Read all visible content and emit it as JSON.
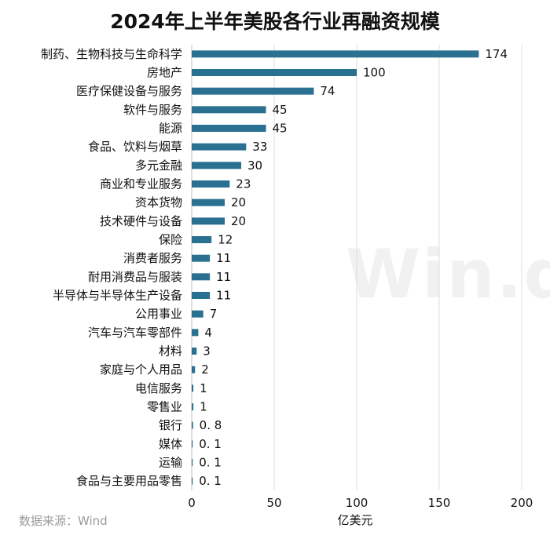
{
  "chart_data": {
    "type": "bar",
    "orientation": "horizontal",
    "title": "2024年上半年美股各行业再融资规模",
    "xlabel": "亿美元",
    "ylabel": "",
    "xlim": [
      0,
      200
    ],
    "x_ticks": [
      0,
      50,
      100,
      150,
      200
    ],
    "grid": true,
    "bar_color": "#2a7091",
    "categories": [
      "制药、生物科技与生命科学",
      "房地产",
      "医疗保健设备与服务",
      "软件与服务",
      "能源",
      "食品、饮料与烟草",
      "多元金融",
      "商业和专业服务",
      "资本货物",
      "技术硬件与设备",
      "保险",
      "消费者服务",
      "耐用消费品与服装",
      "半导体与半导体生产设备",
      "公用事业",
      "汽车与汽车零部件",
      "材料",
      "家庭与个人用品",
      "电信服务",
      "零售业",
      "银行",
      "媒体",
      "运输",
      "食品与主要用品零售"
    ],
    "values": [
      174,
      100,
      74,
      45,
      45,
      33,
      30,
      23,
      20,
      20,
      12,
      11,
      11,
      11,
      7,
      4,
      3,
      2,
      1,
      1,
      0.8,
      0.1,
      0.1,
      0.1
    ],
    "value_labels": [
      "174",
      "100",
      "74",
      "45",
      "45",
      "33",
      "30",
      "23",
      "20",
      "20",
      "12",
      "11",
      "11",
      "11",
      "7",
      "4",
      "3",
      "2",
      "1",
      "1",
      "0. 8",
      "0. 1",
      "0. 1",
      "0. 1"
    ]
  },
  "source": "数据来源：Wind",
  "watermark": "Win.d"
}
